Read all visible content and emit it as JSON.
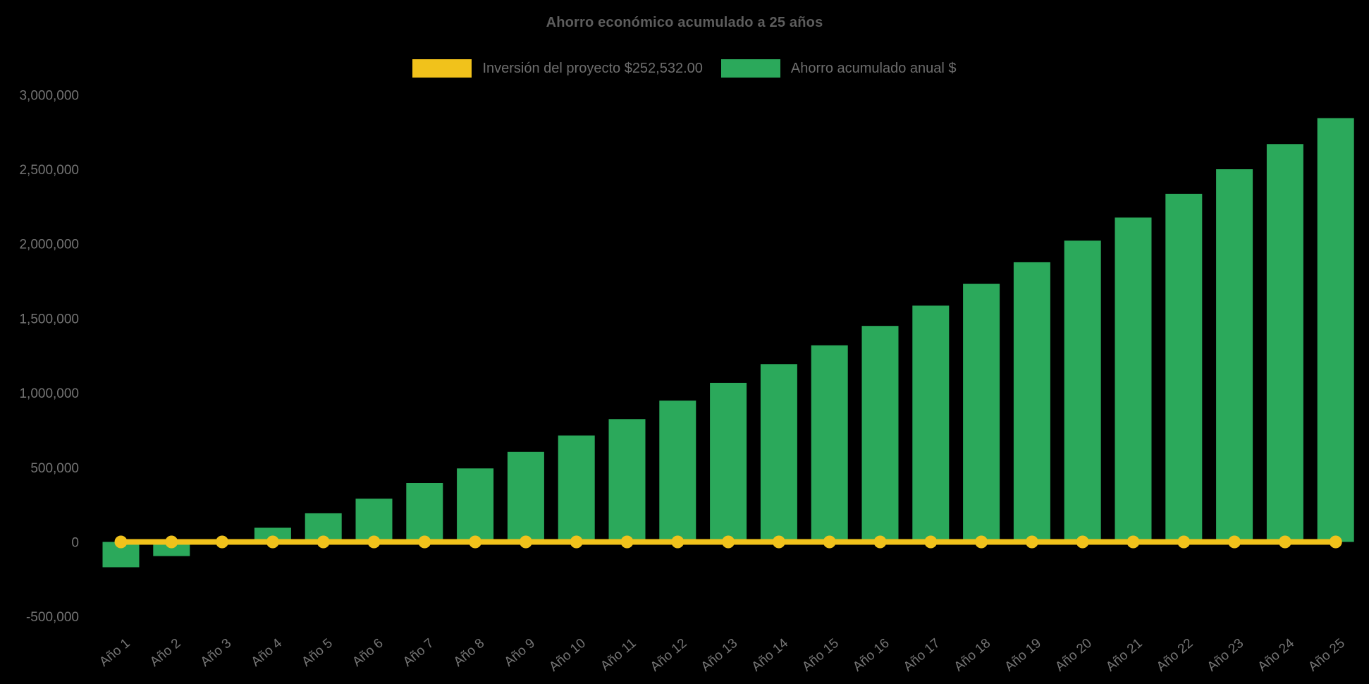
{
  "chart_data": {
    "type": "bar",
    "title": "Ahorro económico acumulado a 25 años",
    "background_color": "#000000",
    "title_color": "#5d5d5d",
    "axis_label_color": "#757575",
    "legend_text_color": "#6e6e6e",
    "legend_position": "top",
    "grid": false,
    "xlabel": "",
    "ylabel": "",
    "ylim": [
      -500000,
      3000000
    ],
    "yticks": [
      3000000,
      2500000,
      2000000,
      1500000,
      1000000,
      500000,
      0,
      -500000
    ],
    "categories": [
      "Año 1",
      "Año 2",
      "Año 3",
      "Año 4",
      "Año 5",
      "Año 6",
      "Año 7",
      "Año 8",
      "Año 9",
      "Año 10",
      "Año 11",
      "Año 12",
      "Año 13",
      "Año 14",
      "Año 15",
      "Año 16",
      "Año 17",
      "Año 18",
      "Año 19",
      "Año 20",
      "Año 21",
      "Año 22",
      "Año 23",
      "Año 24",
      "Año 25"
    ],
    "series": [
      {
        "name": "Inversión del proyecto $252,532.00",
        "type": "line",
        "color": "#F1C21B",
        "marker": "circle",
        "values": [
          0,
          0,
          0,
          0,
          0,
          0,
          0,
          0,
          0,
          0,
          0,
          0,
          0,
          0,
          0,
          0,
          0,
          0,
          0,
          0,
          0,
          0,
          0,
          0,
          0
        ]
      },
      {
        "name": "Ahorro acumulado anual $",
        "type": "bar",
        "color": "#2BA95B",
        "values": [
          -170000,
          -95000,
          10000,
          95000,
          192000,
          290000,
          395000,
          493000,
          604000,
          714000,
          824000,
          948000,
          1067000,
          1193000,
          1319000,
          1449000,
          1585000,
          1731000,
          1876000,
          2021000,
          2176000,
          2335000,
          2500000,
          2669000,
          2843000
        ]
      }
    ]
  }
}
